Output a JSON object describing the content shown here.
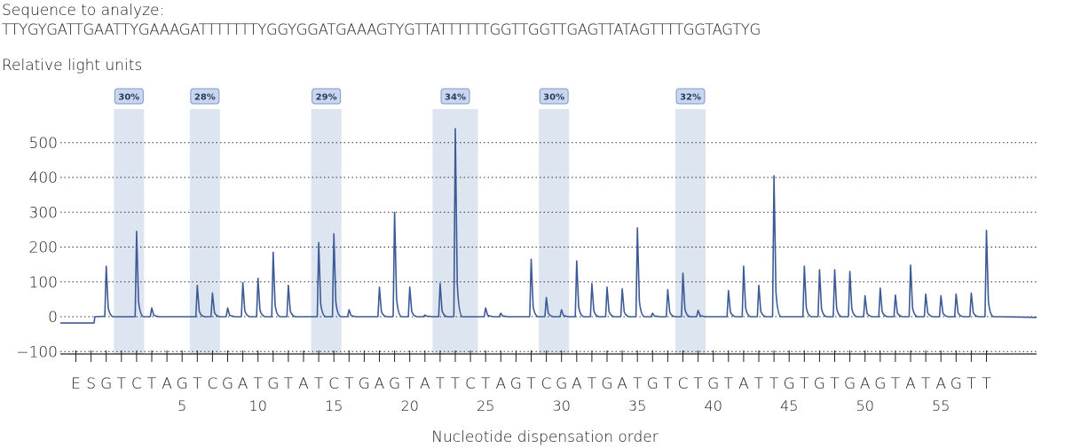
{
  "header": {
    "sequence_label": "Sequence to analyze:",
    "sequence": "TTYGYGATTGAATTYGAAAGATTTTTTTYGGYGGATGAAAGTYGTTATTTTTTGGTTGGTTGAGTTATAGTTTTGGTAGTYG",
    "ylabel": "Relative light units"
  },
  "chart_data": {
    "type": "line",
    "title": "",
    "xlabel": "Nucleotide dispensation order",
    "ylabel": "Relative light units",
    "ylim": [
      -100,
      560
    ],
    "yticks": [
      500,
      400,
      300,
      200,
      100,
      0,
      -100
    ],
    "grid": "horizontal dotted",
    "xticks_numbered": [
      "5",
      "10",
      "15",
      "20",
      "25",
      "30",
      "35",
      "40",
      "45",
      "50",
      "55"
    ],
    "dispensation_order": [
      "E",
      "S",
      "G",
      "T",
      "C",
      "T",
      "A",
      "G",
      "T",
      "C",
      "G",
      "A",
      "T",
      "G",
      "T",
      "A",
      "T",
      "C",
      "T",
      "G",
      "A",
      "G",
      "T",
      "A",
      "T",
      "T",
      "C",
      "T",
      "A",
      "G",
      "T",
      "C",
      "G",
      "A",
      "T",
      "G",
      "A",
      "T",
      "G",
      "T",
      "C",
      "T",
      "G",
      "T",
      "A",
      "T",
      "T",
      "G",
      "T",
      "G",
      "T",
      "G",
      "A",
      "G",
      "T",
      "A",
      "T",
      "A",
      "G",
      "T",
      "T"
    ],
    "peak_heights": [
      0,
      0,
      145,
      0,
      245,
      25,
      0,
      0,
      90,
      68,
      25,
      98,
      110,
      185,
      90,
      0,
      213,
      238,
      20,
      0,
      85,
      300,
      85,
      5,
      95,
      540,
      0,
      25,
      10,
      0,
      165,
      55,
      20,
      160,
      95,
      85,
      80,
      255,
      10,
      78,
      125,
      18,
      0,
      75,
      145,
      90,
      405,
      0,
      145,
      135,
      135,
      130,
      60,
      82,
      62,
      148,
      65,
      60,
      65,
      68,
      248
    ],
    "highlights": [
      {
        "label": "30%"
      },
      {
        "label": "28%"
      },
      {
        "label": "29%"
      },
      {
        "label": "34%"
      },
      {
        "label": "30%"
      },
      {
        "label": "32%"
      }
    ],
    "colors": {
      "trace": "#3d5a95",
      "highlight": "#dde5f1",
      "badge_fill": "#c9d7ee",
      "badge_stroke": "#7d97c8",
      "grid": "#333333"
    }
  }
}
